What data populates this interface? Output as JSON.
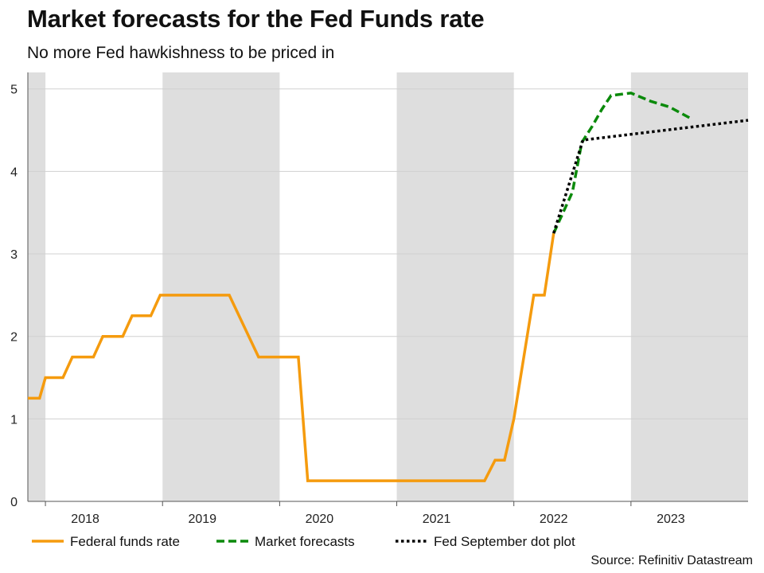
{
  "title": "Market forecasts for the Fed Funds rate",
  "subtitle": "No more Fed hawkishness to be priced in",
  "source": "Source: Refinitiv Datastream",
  "colors": {
    "fed_funds": "#f59b0e",
    "forecast": "#0b8a0b",
    "dot_plot": "#000000",
    "shade": "#dedede",
    "grid": "#d0d0d0"
  },
  "chart_data": {
    "type": "line",
    "title": "Market forecasts for the Fed Funds rate",
    "xlabel": "",
    "ylabel": "",
    "xlim": [
      2017.18,
      2023.33
    ],
    "ylim": [
      0,
      5.2
    ],
    "yticks": [
      0,
      1,
      2,
      3,
      4,
      5
    ],
    "ytick_labels": [
      "0",
      "1",
      "2",
      "3",
      "4",
      "5"
    ],
    "xtick_labels": [
      {
        "label": "2018",
        "at": 2017.67
      },
      {
        "label": "2019",
        "at": 2018.67
      },
      {
        "label": "2020",
        "at": 2019.67
      },
      {
        "label": "2021",
        "at": 2020.67
      },
      {
        "label": "2022",
        "at": 2021.67
      },
      {
        "label": "2023",
        "at": 2022.67
      }
    ],
    "shaded_periods": [
      [
        2017.18,
        2017.33
      ],
      [
        2018.33,
        2019.33
      ],
      [
        2020.33,
        2021.33
      ],
      [
        2022.33,
        2023.33
      ]
    ],
    "legend": [
      {
        "name": "Federal funds rate",
        "style": "solid"
      },
      {
        "name": "Market forecasts",
        "style": "dashed"
      },
      {
        "name": "Fed September dot plot",
        "style": "dotted"
      }
    ],
    "series": [
      {
        "name": "Federal funds rate",
        "points": [
          [
            2017.18,
            1.25
          ],
          [
            2017.28,
            1.25
          ],
          [
            2017.33,
            1.5
          ],
          [
            2017.48,
            1.5
          ],
          [
            2017.56,
            1.75
          ],
          [
            2017.74,
            1.75
          ],
          [
            2017.82,
            2.0
          ],
          [
            2017.99,
            2.0
          ],
          [
            2018.07,
            2.25
          ],
          [
            2018.23,
            2.25
          ],
          [
            2018.31,
            2.5
          ],
          [
            2018.9,
            2.5
          ],
          [
            2019.15,
            1.75
          ],
          [
            2019.49,
            1.75
          ],
          [
            2019.57,
            0.25
          ],
          [
            2020.66,
            0.25
          ],
          [
            2021.08,
            0.25
          ],
          [
            2021.17,
            0.5
          ],
          [
            2021.25,
            0.5
          ],
          [
            2021.33,
            1.0
          ],
          [
            2021.5,
            2.5
          ],
          [
            2021.59,
            2.5
          ],
          [
            2021.67,
            3.25
          ]
        ]
      },
      {
        "name": "Market forecasts",
        "points": [
          [
            2021.67,
            3.25
          ],
          [
            2021.83,
            3.75
          ],
          [
            2021.91,
            4.35
          ],
          [
            2022.0,
            4.55
          ],
          [
            2022.08,
            4.75
          ],
          [
            2022.16,
            4.92
          ],
          [
            2022.33,
            4.95
          ],
          [
            2022.5,
            4.85
          ],
          [
            2022.66,
            4.78
          ],
          [
            2022.83,
            4.65
          ]
        ]
      },
      {
        "name": "Fed September dot plot",
        "points": [
          [
            2021.67,
            3.25
          ],
          [
            2021.92,
            4.38
          ],
          [
            2023.33,
            4.62
          ]
        ]
      }
    ]
  }
}
